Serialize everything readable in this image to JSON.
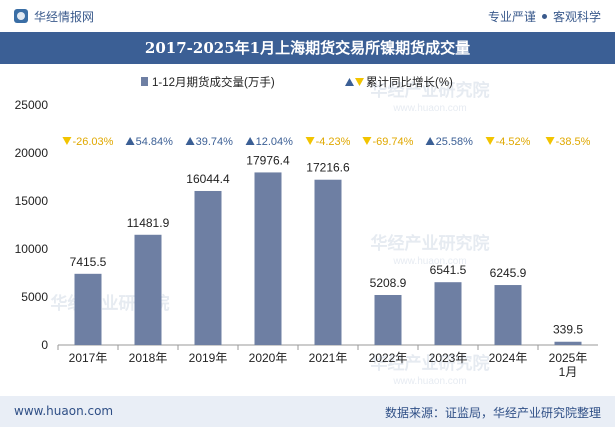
{
  "header": {
    "brand_name": "华经情报网",
    "right_left": "专业严谨",
    "right_right": "客观科学"
  },
  "footer": {
    "website": "www.huaon.com",
    "source": "数据来源：证监局，华经产业研究院整理"
  },
  "watermark": {
    "text": "华经产业研究院",
    "url": "www.huaon.com"
  },
  "colors": {
    "bar": "#6e7fa3",
    "title_bg": "#3b5f95",
    "up_triangle": "#3b5f95",
    "down_triangle": "#f2c400"
  },
  "chart_data": {
    "type": "bar",
    "title": "2017-2025年1月上海期货交易所镍期货成交量",
    "legend": {
      "bar_label": "1-12月期货成交量(万手)",
      "line_label": "累计同比增长(%)"
    },
    "categories": [
      "2017年",
      "2018年",
      "2019年",
      "2020年",
      "2021年",
      "2022年",
      "2023年",
      "2024年",
      "2025年\n1月"
    ],
    "values": [
      7415.5,
      11481.9,
      16044.4,
      17976.4,
      17216.6,
      5208.9,
      6541.5,
      6245.9,
      339.5
    ],
    "value_labels": [
      "7415.5",
      "11481.9",
      "16044.4",
      "17976.4",
      "17216.6",
      "5208.9",
      "6541.5",
      "6245.9",
      "339.5"
    ],
    "growth": [
      -26.03,
      54.84,
      39.74,
      12.04,
      -4.23,
      -69.74,
      25.58,
      -4.52,
      -38.5
    ],
    "growth_labels": [
      "-26.03%",
      "54.84%",
      "39.74%",
      "12.04%",
      "-4.23%",
      "-69.74%",
      "25.58%",
      "-4.52%",
      "-38.5%"
    ],
    "y_ticks": [
      0,
      5000,
      10000,
      15000,
      20000,
      25000
    ],
    "ylim": [
      0,
      25000
    ]
  }
}
